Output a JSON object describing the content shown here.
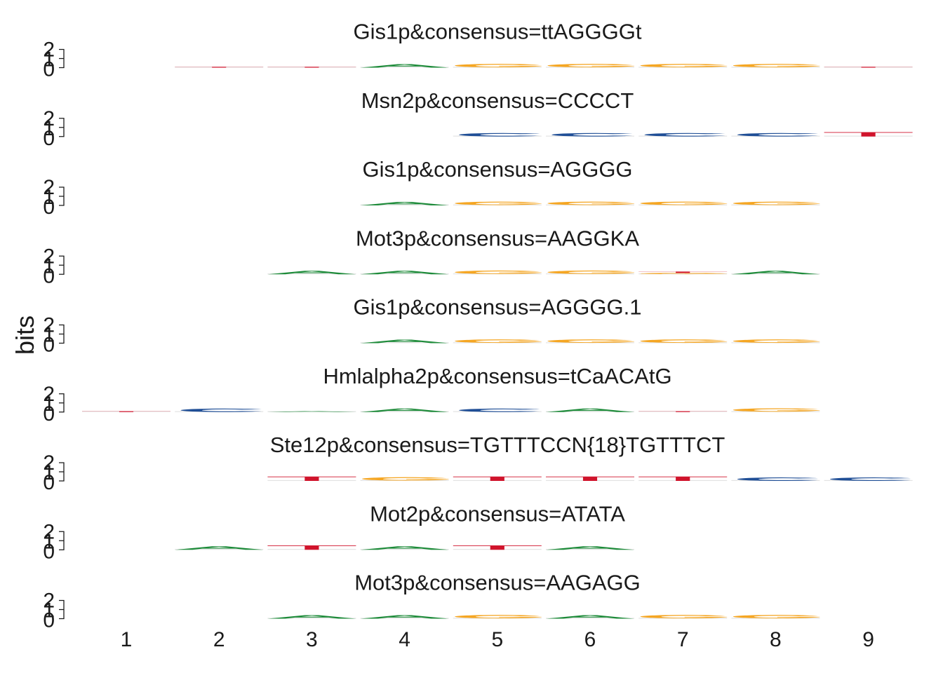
{
  "chart_data": {
    "type": "sequence-logo",
    "ylabel": "bits",
    "x_ticks": [
      "1",
      "2",
      "3",
      "4",
      "5",
      "6",
      "7",
      "8",
      "9"
    ],
    "y_ticks": [
      "0",
      "1",
      "2"
    ],
    "ylim": [
      0,
      2
    ],
    "colors": {
      "A": "#1e8b3a",
      "C": "#1f4e96",
      "G": "#f5a623",
      "T": "#d0142c"
    },
    "panels": [
      {
        "title": "Gis1p&consensus=ttAGGGGt",
        "positions": [
          {
            "pos": 2,
            "letters": [
              {
                "l": "T",
                "h": 0.04
              }
            ]
          },
          {
            "pos": 3,
            "letters": [
              {
                "l": "T",
                "h": 0.04
              }
            ]
          },
          {
            "pos": 4,
            "letters": [
              {
                "l": "A",
                "h": 0.38
              }
            ]
          },
          {
            "pos": 5,
            "letters": [
              {
                "l": "G",
                "h": 0.38
              }
            ]
          },
          {
            "pos": 6,
            "letters": [
              {
                "l": "G",
                "h": 0.38
              }
            ]
          },
          {
            "pos": 7,
            "letters": [
              {
                "l": "G",
                "h": 0.38
              }
            ]
          },
          {
            "pos": 8,
            "letters": [
              {
                "l": "G",
                "h": 0.38
              }
            ]
          },
          {
            "pos": 9,
            "letters": [
              {
                "l": "T",
                "h": 0.04
              }
            ]
          }
        ]
      },
      {
        "title": "Msn2p&consensus=CCCCT",
        "positions": [
          {
            "pos": 5,
            "letters": [
              {
                "l": "C",
                "h": 0.38
              }
            ]
          },
          {
            "pos": 6,
            "letters": [
              {
                "l": "C",
                "h": 0.38
              }
            ]
          },
          {
            "pos": 7,
            "letters": [
              {
                "l": "C",
                "h": 0.38
              }
            ]
          },
          {
            "pos": 8,
            "letters": [
              {
                "l": "C",
                "h": 0.38
              }
            ]
          },
          {
            "pos": 9,
            "letters": [
              {
                "l": "T",
                "h": 0.48
              }
            ]
          }
        ]
      },
      {
        "title": "Gis1p&consensus=AGGGG",
        "positions": [
          {
            "pos": 4,
            "letters": [
              {
                "l": "A",
                "h": 0.38
              }
            ]
          },
          {
            "pos": 5,
            "letters": [
              {
                "l": "G",
                "h": 0.38
              }
            ]
          },
          {
            "pos": 6,
            "letters": [
              {
                "l": "G",
                "h": 0.38
              }
            ]
          },
          {
            "pos": 7,
            "letters": [
              {
                "l": "G",
                "h": 0.38
              }
            ]
          },
          {
            "pos": 8,
            "letters": [
              {
                "l": "G",
                "h": 0.38
              }
            ]
          }
        ]
      },
      {
        "title": "Mot3p&consensus=AAGGKA",
        "positions": [
          {
            "pos": 3,
            "letters": [
              {
                "l": "A",
                "h": 0.38
              }
            ]
          },
          {
            "pos": 4,
            "letters": [
              {
                "l": "A",
                "h": 0.38
              }
            ]
          },
          {
            "pos": 5,
            "letters": [
              {
                "l": "G",
                "h": 0.38
              }
            ]
          },
          {
            "pos": 6,
            "letters": [
              {
                "l": "G",
                "h": 0.38
              }
            ]
          },
          {
            "pos": 7,
            "letters": [
              {
                "l": "G",
                "h": 0.14
              },
              {
                "l": "T",
                "h": 0.16
              }
            ]
          },
          {
            "pos": 8,
            "letters": [
              {
                "l": "A",
                "h": 0.38
              }
            ]
          }
        ]
      },
      {
        "title": "Gis1p&consensus=AGGGG.1",
        "positions": [
          {
            "pos": 4,
            "letters": [
              {
                "l": "A",
                "h": 0.38
              }
            ]
          },
          {
            "pos": 5,
            "letters": [
              {
                "l": "G",
                "h": 0.38
              }
            ]
          },
          {
            "pos": 6,
            "letters": [
              {
                "l": "G",
                "h": 0.38
              }
            ]
          },
          {
            "pos": 7,
            "letters": [
              {
                "l": "G",
                "h": 0.38
              }
            ]
          },
          {
            "pos": 8,
            "letters": [
              {
                "l": "G",
                "h": 0.38
              }
            ]
          }
        ]
      },
      {
        "title": "Hmlalpha2p&consensus=tCaACAtG",
        "positions": [
          {
            "pos": 1,
            "letters": [
              {
                "l": "T",
                "h": 0.04
              }
            ]
          },
          {
            "pos": 2,
            "letters": [
              {
                "l": "C",
                "h": 0.38
              }
            ]
          },
          {
            "pos": 3,
            "letters": [
              {
                "l": "A",
                "h": 0.04
              }
            ]
          },
          {
            "pos": 4,
            "letters": [
              {
                "l": "A",
                "h": 0.38
              }
            ]
          },
          {
            "pos": 5,
            "letters": [
              {
                "l": "C",
                "h": 0.38
              }
            ]
          },
          {
            "pos": 6,
            "letters": [
              {
                "l": "A",
                "h": 0.38
              }
            ]
          },
          {
            "pos": 7,
            "letters": [
              {
                "l": "T",
                "h": 0.04
              }
            ]
          },
          {
            "pos": 8,
            "letters": [
              {
                "l": "G",
                "h": 0.38
              }
            ]
          }
        ]
      },
      {
        "title": "Ste12p&consensus=TGTTTCCN{18}TGTTTCT",
        "positions": [
          {
            "pos": 3,
            "letters": [
              {
                "l": "T",
                "h": 0.48
              }
            ]
          },
          {
            "pos": 4,
            "letters": [
              {
                "l": "G",
                "h": 0.38
              }
            ]
          },
          {
            "pos": 5,
            "letters": [
              {
                "l": "T",
                "h": 0.48
              }
            ]
          },
          {
            "pos": 6,
            "letters": [
              {
                "l": "T",
                "h": 0.48
              }
            ]
          },
          {
            "pos": 7,
            "letters": [
              {
                "l": "T",
                "h": 0.48
              }
            ]
          },
          {
            "pos": 8,
            "letters": [
              {
                "l": "C",
                "h": 0.38
              }
            ]
          },
          {
            "pos": 9,
            "letters": [
              {
                "l": "C",
                "h": 0.38
              }
            ]
          }
        ]
      },
      {
        "title": "Mot2p&consensus=ATATA",
        "positions": [
          {
            "pos": 2,
            "letters": [
              {
                "l": "A",
                "h": 0.38
              }
            ]
          },
          {
            "pos": 3,
            "letters": [
              {
                "l": "T",
                "h": 0.48
              }
            ]
          },
          {
            "pos": 4,
            "letters": [
              {
                "l": "A",
                "h": 0.38
              }
            ]
          },
          {
            "pos": 5,
            "letters": [
              {
                "l": "T",
                "h": 0.48
              }
            ]
          },
          {
            "pos": 6,
            "letters": [
              {
                "l": "A",
                "h": 0.38
              }
            ]
          }
        ]
      },
      {
        "title": "Mot3p&consensus=AAGAGG",
        "positions": [
          {
            "pos": 3,
            "letters": [
              {
                "l": "A",
                "h": 0.38
              }
            ]
          },
          {
            "pos": 4,
            "letters": [
              {
                "l": "A",
                "h": 0.38
              }
            ]
          },
          {
            "pos": 5,
            "letters": [
              {
                "l": "G",
                "h": 0.38
              }
            ]
          },
          {
            "pos": 6,
            "letters": [
              {
                "l": "A",
                "h": 0.38
              }
            ]
          },
          {
            "pos": 7,
            "letters": [
              {
                "l": "G",
                "h": 0.38
              }
            ]
          },
          {
            "pos": 8,
            "letters": [
              {
                "l": "G",
                "h": 0.38
              }
            ]
          }
        ]
      }
    ]
  }
}
